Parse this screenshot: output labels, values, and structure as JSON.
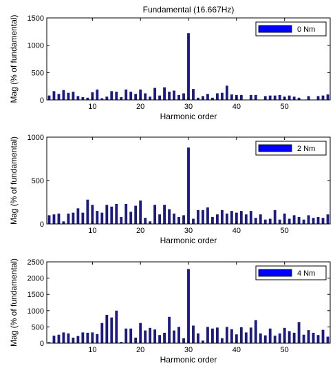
{
  "figure_title": "Fundamental (16.667Hz)",
  "chart_data": [
    {
      "type": "bar",
      "xlabel": "Harmonic order",
      "ylabel": "Mag (% of fundamental)",
      "xlim": [
        1,
        59
      ],
      "ylim": [
        0,
        1500
      ],
      "xticks": [
        10,
        20,
        30,
        40,
        50
      ],
      "yticks": [
        0,
        500,
        1000,
        1500
      ],
      "legend": "0 Nm",
      "legend_position": "top-right",
      "bar_color": "#1a1a80",
      "legend_color": "#0000ff",
      "series": [
        {
          "name": "0 Nm",
          "x": [
            1,
            2,
            3,
            4,
            5,
            6,
            7,
            8,
            9,
            10,
            11,
            12,
            13,
            14,
            15,
            16,
            17,
            18,
            19,
            20,
            21,
            22,
            23,
            24,
            25,
            26,
            27,
            28,
            29,
            30,
            31,
            32,
            33,
            34,
            35,
            36,
            37,
            38,
            39,
            40,
            41,
            42,
            43,
            44,
            45,
            46,
            47,
            48,
            49,
            50,
            51,
            52,
            53,
            54,
            55,
            56,
            57,
            58,
            59
          ],
          "values": [
            80,
            160,
            110,
            180,
            130,
            150,
            70,
            50,
            40,
            140,
            190,
            30,
            60,
            160,
            150,
            50,
            190,
            150,
            110,
            190,
            120,
            60,
            220,
            80,
            230,
            150,
            170,
            90,
            120,
            1220,
            200,
            40,
            70,
            110,
            40,
            120,
            130,
            260,
            100,
            90,
            90,
            0,
            90,
            90,
            0,
            70,
            80,
            80,
            90,
            60,
            80,
            60,
            40,
            0,
            70,
            0,
            70,
            80,
            100
          ]
        }
      ]
    },
    {
      "type": "bar",
      "xlabel": "Harmonic order",
      "ylabel": "Mag (% of fundamental)",
      "xlim": [
        1,
        59
      ],
      "ylim": [
        0,
        1000
      ],
      "xticks": [
        10,
        20,
        30,
        40,
        50
      ],
      "yticks": [
        0,
        500,
        1000
      ],
      "legend": "2 Nm",
      "legend_position": "top-right",
      "bar_color": "#1a1a80",
      "legend_color": "#0000ff",
      "series": [
        {
          "name": "2 Nm",
          "x": [
            1,
            2,
            3,
            4,
            5,
            6,
            7,
            8,
            9,
            10,
            11,
            12,
            13,
            14,
            15,
            16,
            17,
            18,
            19,
            20,
            21,
            22,
            23,
            24,
            25,
            26,
            27,
            28,
            29,
            30,
            31,
            32,
            33,
            34,
            35,
            36,
            37,
            38,
            39,
            40,
            41,
            42,
            43,
            44,
            45,
            46,
            47,
            48,
            49,
            50,
            51,
            52,
            53,
            54,
            55,
            56,
            57,
            58,
            59
          ],
          "values": [
            100,
            110,
            120,
            30,
            120,
            130,
            180,
            130,
            280,
            220,
            150,
            130,
            220,
            200,
            230,
            80,
            230,
            140,
            210,
            270,
            70,
            30,
            220,
            110,
            220,
            170,
            120,
            80,
            100,
            880,
            60,
            160,
            160,
            190,
            80,
            110,
            160,
            120,
            150,
            130,
            150,
            110,
            150,
            70,
            110,
            50,
            60,
            160,
            50,
            120,
            60,
            100,
            80,
            50,
            100,
            70,
            80,
            70,
            110
          ]
        }
      ]
    },
    {
      "type": "bar",
      "xlabel": "Harmonic order",
      "ylabel": "Mag (% of fundamental)",
      "xlim": [
        1,
        59
      ],
      "ylim": [
        0,
        2500
      ],
      "xticks": [
        10,
        20,
        30,
        40,
        50
      ],
      "yticks": [
        0,
        500,
        1000,
        1500,
        2000,
        2500
      ],
      "legend": "4 Nm",
      "legend_position": "top-right",
      "bar_color": "#1a1a80",
      "legend_color": "#0000ff",
      "series": [
        {
          "name": "4 Nm",
          "x": [
            1,
            2,
            3,
            4,
            5,
            6,
            7,
            8,
            9,
            10,
            11,
            12,
            13,
            14,
            15,
            16,
            17,
            18,
            19,
            20,
            21,
            22,
            23,
            24,
            25,
            26,
            27,
            28,
            29,
            30,
            31,
            32,
            33,
            34,
            35,
            36,
            37,
            38,
            39,
            40,
            41,
            42,
            43,
            44,
            45,
            46,
            47,
            48,
            49,
            50,
            51,
            52,
            53,
            54,
            55,
            56,
            57,
            58,
            59
          ],
          "values": [
            30,
            230,
            260,
            330,
            300,
            170,
            220,
            330,
            320,
            330,
            280,
            620,
            870,
            790,
            1000,
            40,
            450,
            450,
            170,
            620,
            390,
            470,
            420,
            250,
            320,
            810,
            390,
            500,
            150,
            2280,
            540,
            300,
            80,
            500,
            450,
            480,
            150,
            500,
            430,
            270,
            490,
            330,
            480,
            710,
            300,
            240,
            450,
            230,
            300,
            470,
            370,
            320,
            650,
            260,
            400,
            320,
            250,
            410,
            200
          ]
        }
      ]
    }
  ]
}
